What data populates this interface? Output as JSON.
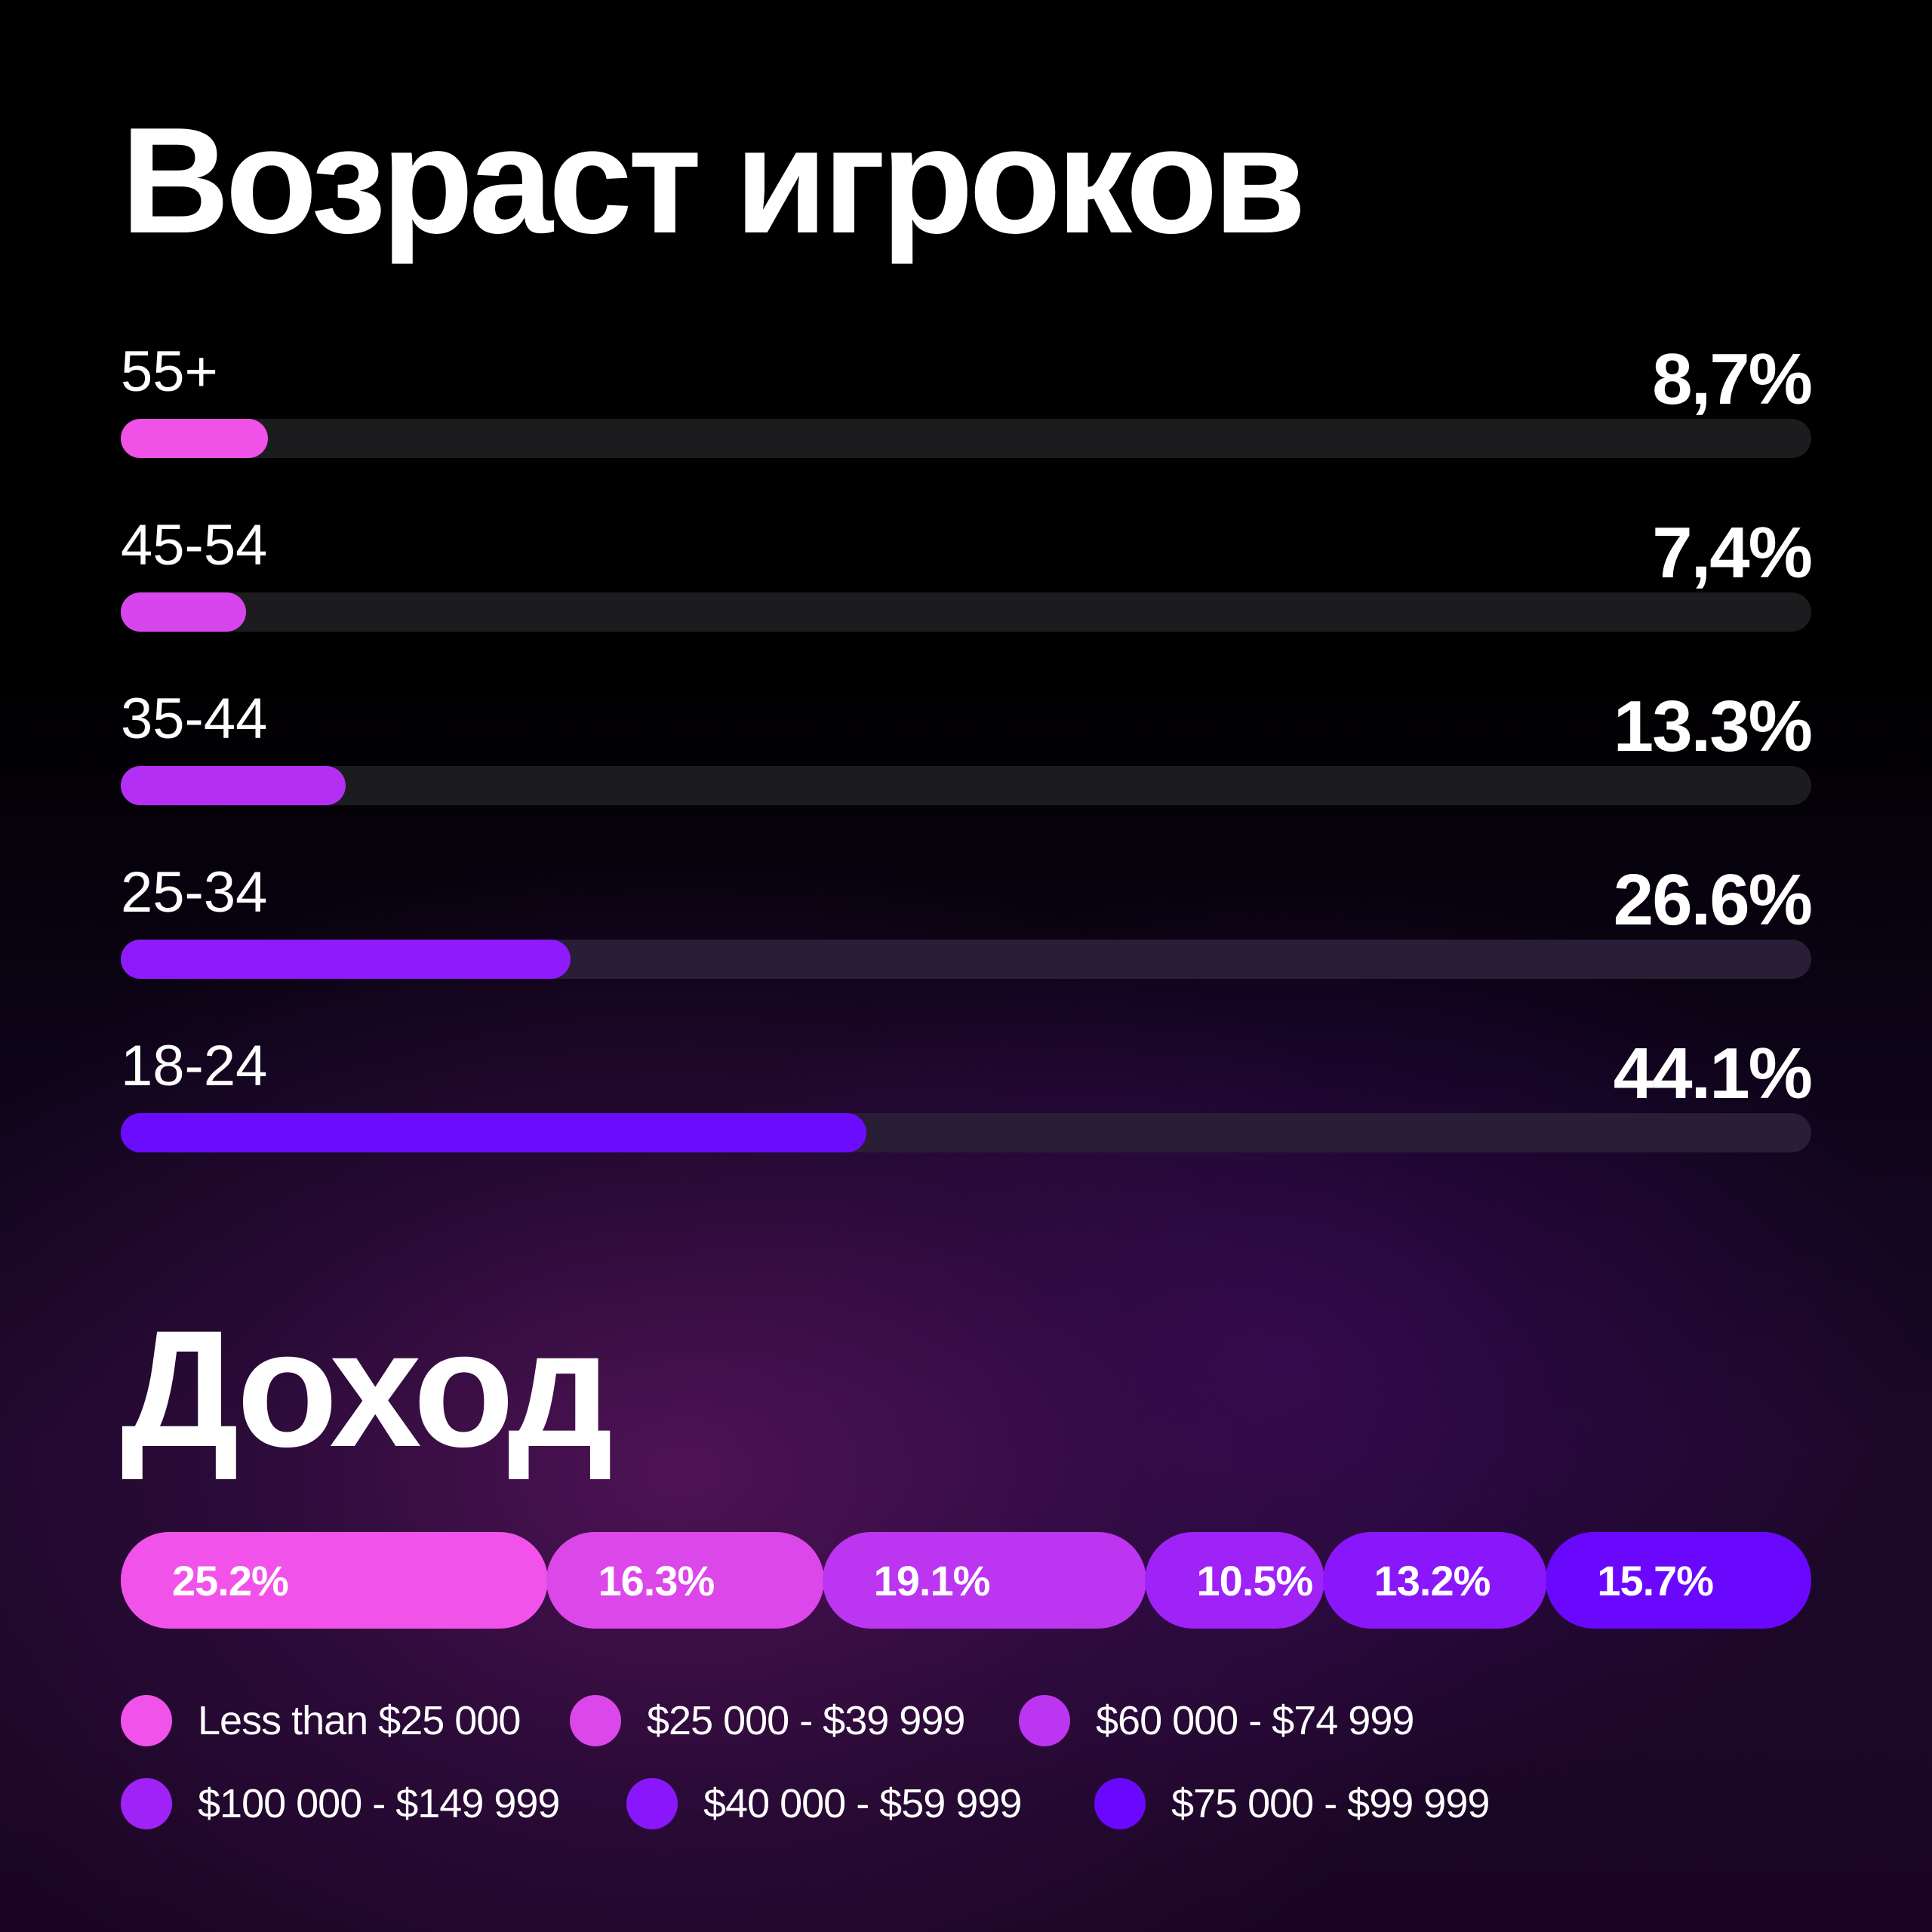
{
  "age_section": {
    "title": "Возраст игроков"
  },
  "income_section": {
    "title": "Доход"
  },
  "chart_data": [
    {
      "type": "bar",
      "orientation": "horizontal",
      "title": "Возраст игроков",
      "categories": [
        "55+",
        "45-54",
        "35-44",
        "25-34",
        "18-24"
      ],
      "values": [
        8.7,
        7.4,
        13.3,
        26.6,
        44.1
      ],
      "value_labels": [
        "8,7%",
        "7,4%",
        "13.3%",
        "26.6%",
        "44.1%"
      ],
      "xlim": [
        0,
        100
      ],
      "colors": [
        "#f052e8",
        "#d646ec",
        "#b22ff3",
        "#8f1afb",
        "#6c0cfc"
      ],
      "track_color": "#1c1c1e"
    },
    {
      "type": "bar",
      "orientation": "stacked-horizontal",
      "title": "Доход",
      "categories": [
        "Less than $25 000",
        "$25 000 - $39 999",
        "$60 000 - $74 999",
        "$100 000 - $149 999",
        "$40 000 - $59 999",
        "$75 000 - $99 999"
      ],
      "values": [
        25.2,
        16.3,
        19.1,
        10.5,
        13.2,
        15.7
      ],
      "value_labels": [
        "25.2%",
        "16.3%",
        "19.1%",
        "10.5%",
        "13.2%",
        "15.7%"
      ],
      "colors": [
        "#f153ea",
        "#dc47ea",
        "#bc35f0",
        "#9f22f7",
        "#8a17fb",
        "#6a08fd"
      ],
      "legend_placement": "bottom"
    }
  ]
}
